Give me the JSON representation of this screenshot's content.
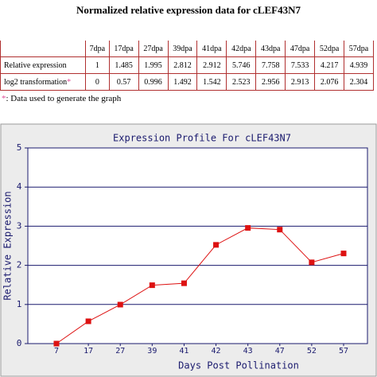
{
  "header": {
    "title": "Normalized relative expression data for cLEF43N7"
  },
  "table": {
    "columns": [
      "7dpa",
      "17dpa",
      "27dpa",
      "39dpa",
      "41dpa",
      "42dpa",
      "43dpa",
      "47dpa",
      "52dpa",
      "57dpa"
    ],
    "rows": [
      {
        "label": "Relative expression",
        "values": [
          1,
          1.485,
          1.995,
          2.812,
          2.912,
          5.746,
          7.758,
          7.533,
          4.217,
          4.939
        ]
      },
      {
        "label": "log2 transformation",
        "marker": "*",
        "values": [
          0,
          0.57,
          0.996,
          1.492,
          1.542,
          2.523,
          2.956,
          2.913,
          2.076,
          2.304
        ]
      }
    ]
  },
  "note": {
    "marker": "*",
    "text": ": Data used to generate the graph"
  },
  "chart_data": {
    "type": "line",
    "title": "Expression Profile For cLEF43N7",
    "x_label": "Days Post Pollination",
    "y_label": "Relative Expression",
    "categories": [
      "7",
      "17",
      "27",
      "39",
      "41",
      "42",
      "43",
      "47",
      "52",
      "57"
    ],
    "series": [
      {
        "name": "log2 transformation",
        "color": "#dd1111",
        "values": [
          0,
          0.57,
          0.996,
          1.492,
          1.542,
          2.523,
          2.956,
          2.913,
          2.076,
          2.304
        ]
      }
    ],
    "ylim": [
      0,
      5
    ],
    "yticks": [
      0,
      1,
      2,
      3,
      4,
      5
    ],
    "grid": true,
    "legend": false
  }
}
